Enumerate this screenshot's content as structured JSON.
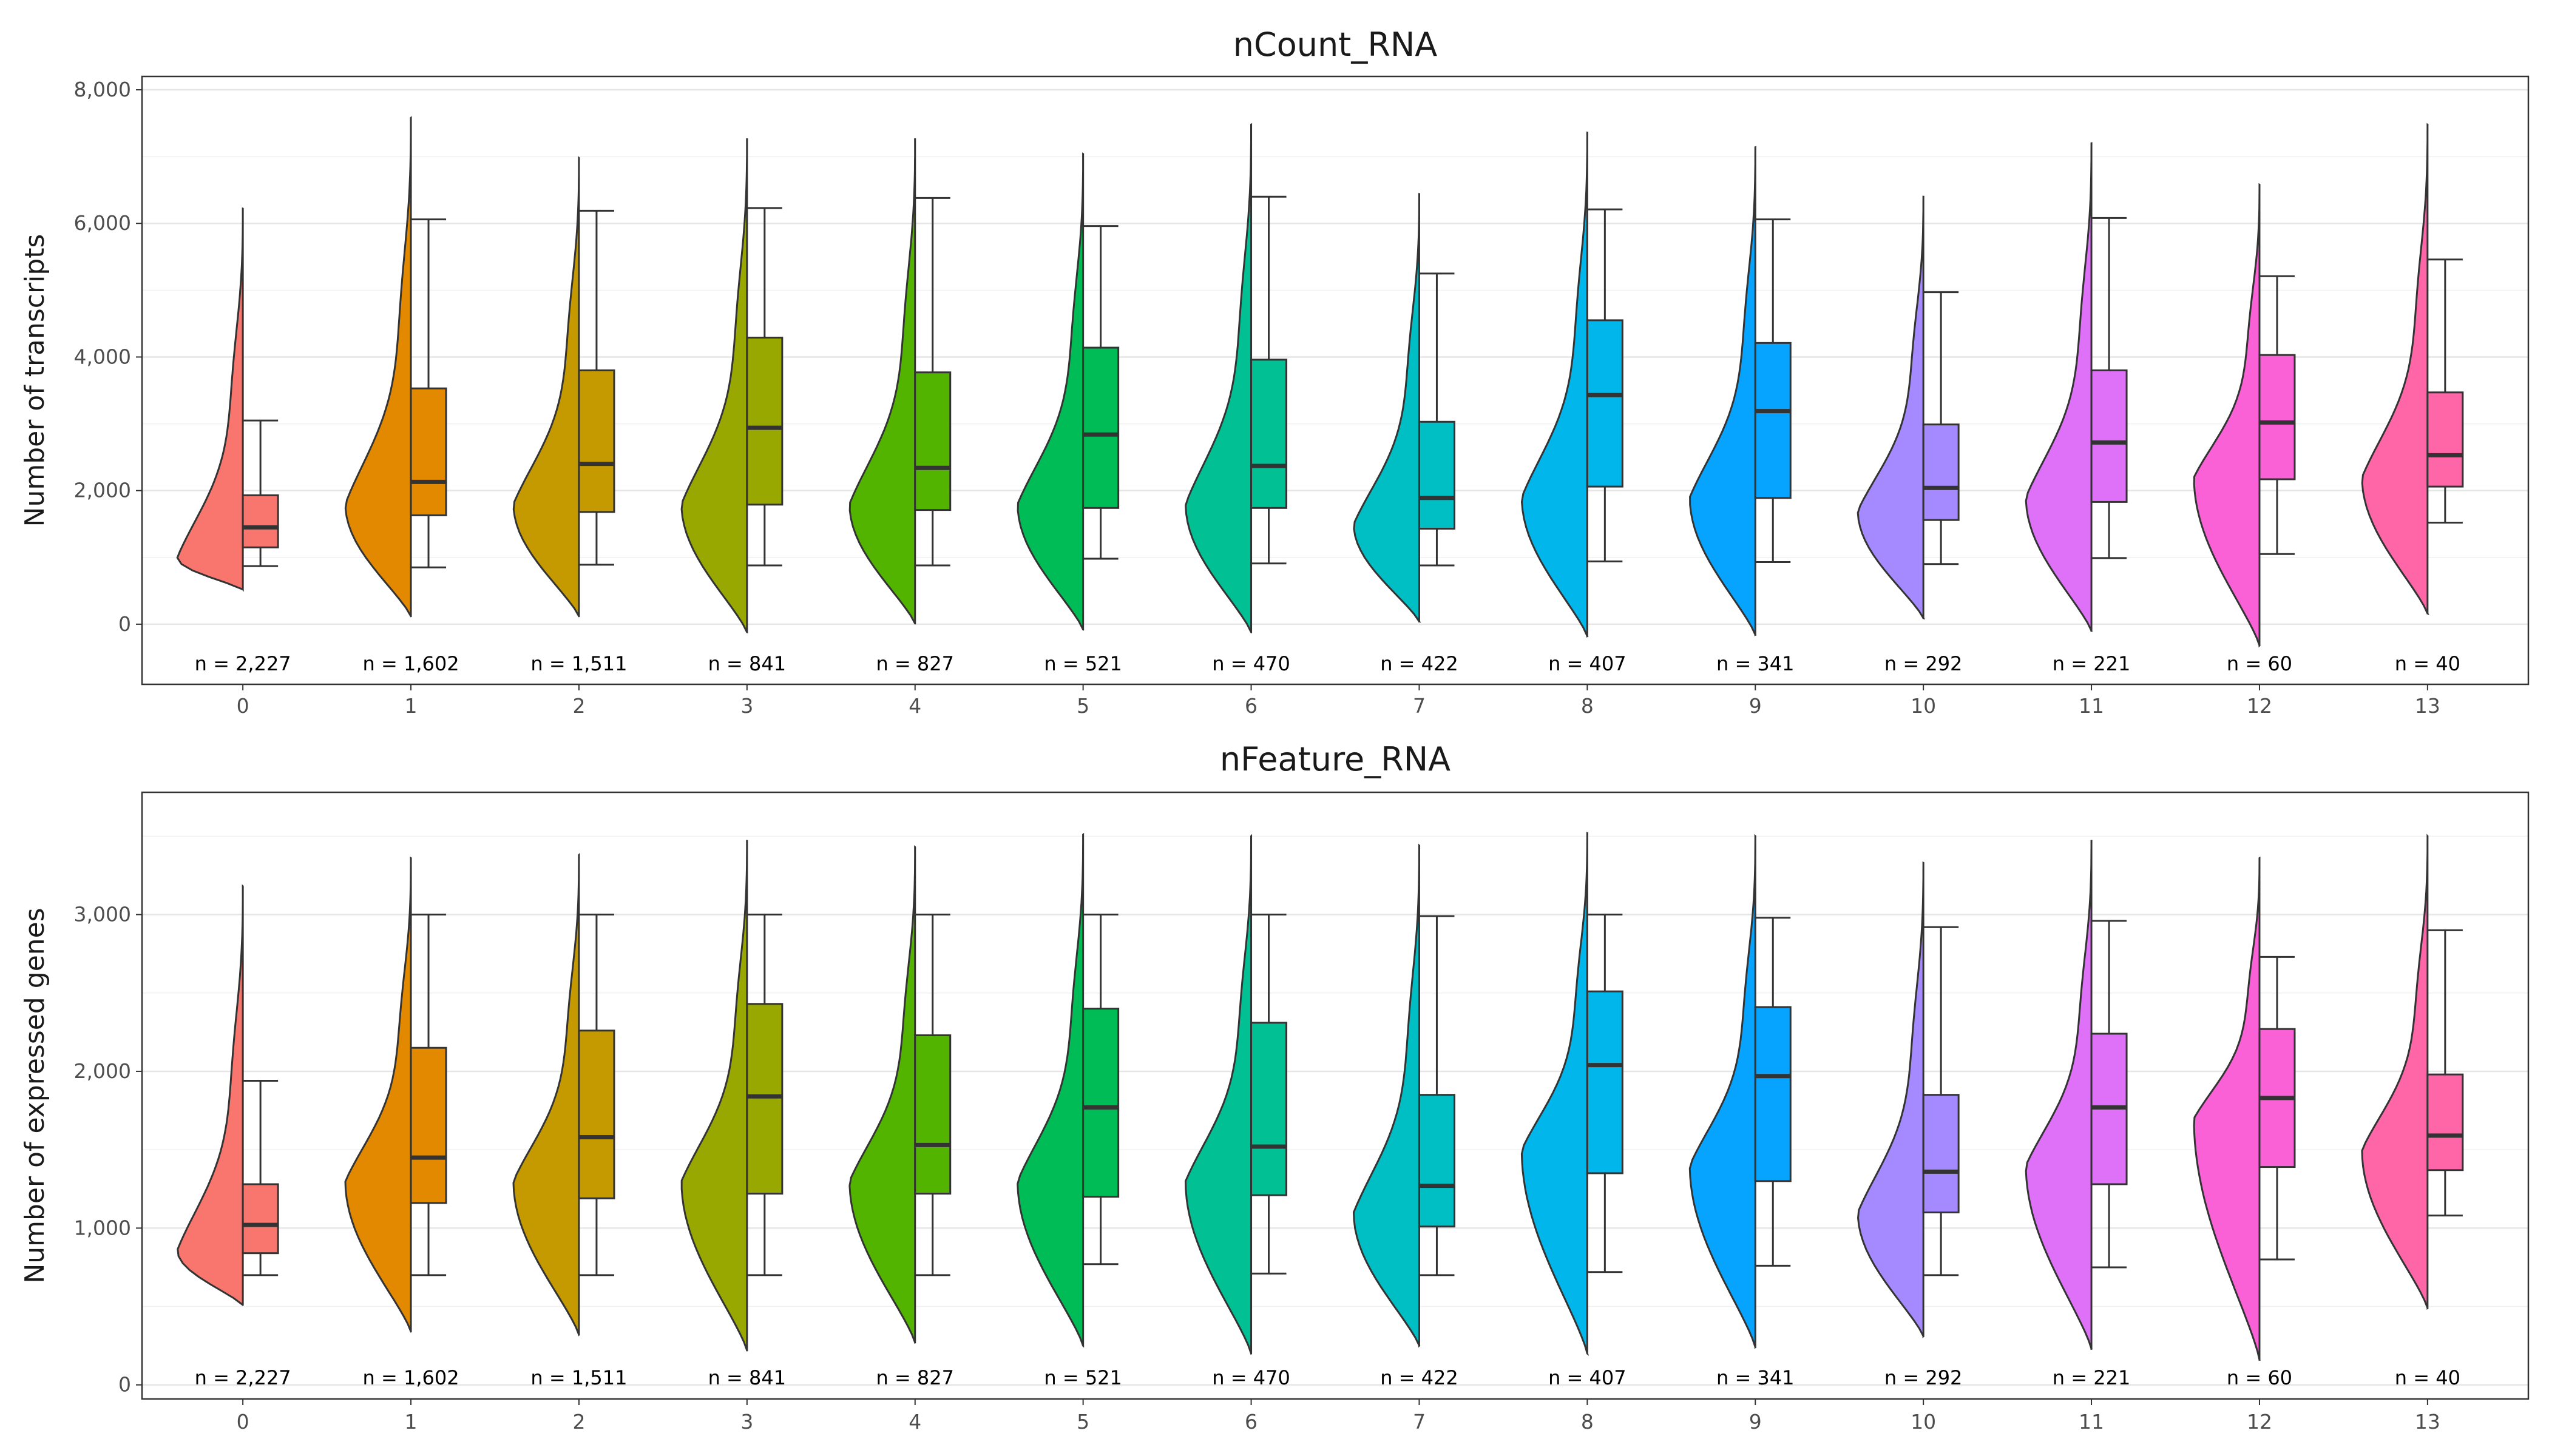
{
  "chart_data": [
    {
      "type": "violin+box",
      "title": "nCount_RNA",
      "xlabel": "",
      "ylabel": "Number of transcripts",
      "ylim": [
        -900,
        8200
      ],
      "yticks": [
        0,
        2000,
        4000,
        6000,
        8000
      ],
      "ytick_labels": [
        "0",
        "2,000",
        "4,000",
        "6,000",
        "8,000"
      ],
      "grid": true,
      "categories": [
        "0",
        "1",
        "2",
        "3",
        "4",
        "5",
        "6",
        "7",
        "8",
        "9",
        "10",
        "11",
        "12",
        "13"
      ],
      "colors": [
        "#F8766D",
        "#E38900",
        "#C49A00",
        "#99A800",
        "#53B400",
        "#00BC56",
        "#00C094",
        "#00BFC4",
        "#00B6EB",
        "#06A4FF",
        "#A58AFF",
        "#DF70F8",
        "#FB61D7",
        "#FF66A8"
      ],
      "n_labels": [
        "n = 2,227",
        "n = 1,602",
        "n = 1,511",
        "n = 841",
        "n = 827",
        "n = 521",
        "n = 470",
        "n = 422",
        "n = 407",
        "n = 341",
        "n = 292",
        "n = 221",
        "n = 60",
        "n = 40"
      ],
      "violin_range": [
        [
          520,
          6220
        ],
        [
          120,
          7580
        ],
        [
          120,
          6980
        ],
        [
          -120,
          7260
        ],
        [
          10,
          7260
        ],
        [
          -80,
          7040
        ],
        [
          -120,
          7480
        ],
        [
          40,
          6440
        ],
        [
          -180,
          7360
        ],
        [
          -160,
          7140
        ],
        [
          90,
          6400
        ],
        [
          -100,
          7200
        ],
        [
          -320,
          6580
        ],
        [
          160,
          7480
        ]
      ],
      "violin_peak": [
        1000,
        1800,
        1800,
        1800,
        1800,
        1800,
        1800,
        1500,
        1900,
        1900,
        1700,
        1900,
        2200,
        2200
      ],
      "box": [
        {
          "whisker_low": 870,
          "q1": 1150,
          "median": 1450,
          "q3": 1930,
          "whisker_high": 3050
        },
        {
          "whisker_low": 850,
          "q1": 1630,
          "median": 2130,
          "q3": 3530,
          "whisker_high": 6060
        },
        {
          "whisker_low": 890,
          "q1": 1680,
          "median": 2400,
          "q3": 3800,
          "whisker_high": 6190
        },
        {
          "whisker_low": 880,
          "q1": 1790,
          "median": 2940,
          "q3": 4290,
          "whisker_high": 6230
        },
        {
          "whisker_low": 880,
          "q1": 1710,
          "median": 2340,
          "q3": 3770,
          "whisker_high": 6380
        },
        {
          "whisker_low": 980,
          "q1": 1740,
          "median": 2840,
          "q3": 4140,
          "whisker_high": 5960
        },
        {
          "whisker_low": 910,
          "q1": 1740,
          "median": 2370,
          "q3": 3960,
          "whisker_high": 6400
        },
        {
          "whisker_low": 880,
          "q1": 1430,
          "median": 1890,
          "q3": 3030,
          "whisker_high": 5250
        },
        {
          "whisker_low": 940,
          "q1": 2060,
          "median": 3430,
          "q3": 4550,
          "whisker_high": 6210
        },
        {
          "whisker_low": 930,
          "q1": 1890,
          "median": 3190,
          "q3": 4210,
          "whisker_high": 6060
        },
        {
          "whisker_low": 900,
          "q1": 1560,
          "median": 2040,
          "q3": 2990,
          "whisker_high": 4970
        },
        {
          "whisker_low": 990,
          "q1": 1830,
          "median": 2720,
          "q3": 3800,
          "whisker_high": 6080
        },
        {
          "whisker_low": 1050,
          "q1": 2170,
          "median": 3020,
          "q3": 4030,
          "whisker_high": 5210
        },
        {
          "whisker_low": 1520,
          "q1": 2060,
          "median": 2530,
          "q3": 3470,
          "whisker_high": 5460
        }
      ]
    },
    {
      "type": "violin+box",
      "title": "nFeature_RNA",
      "xlabel": "",
      "ylabel": "Number of expressed genes",
      "ylim": [
        -90,
        3780
      ],
      "yticks": [
        0,
        1000,
        2000,
        3000
      ],
      "ytick_labels": [
        "0",
        "1,000",
        "2,000",
        "3,000"
      ],
      "grid": true,
      "categories": [
        "0",
        "1",
        "2",
        "3",
        "4",
        "5",
        "6",
        "7",
        "8",
        "9",
        "10",
        "11",
        "12",
        "13"
      ],
      "colors": [
        "#F8766D",
        "#E38900",
        "#C49A00",
        "#99A800",
        "#53B400",
        "#00BC56",
        "#00C094",
        "#00BFC4",
        "#00B6EB",
        "#06A4FF",
        "#A58AFF",
        "#DF70F8",
        "#FB61D7",
        "#FF66A8"
      ],
      "n_labels": [
        "n = 2,227",
        "n = 1,602",
        "n = 1,511",
        "n = 841",
        "n = 827",
        "n = 521",
        "n = 470",
        "n = 422",
        "n = 407",
        "n = 341",
        "n = 292",
        "n = 221",
        "n = 60",
        "n = 40"
      ],
      "violin_range": [
        [
          510,
          3180
        ],
        [
          340,
          3360
        ],
        [
          320,
          3380
        ],
        [
          220,
          3470
        ],
        [
          270,
          3430
        ],
        [
          250,
          3510
        ],
        [
          200,
          3500
        ],
        [
          250,
          3440
        ],
        [
          200,
          3520
        ],
        [
          240,
          3500
        ],
        [
          310,
          3330
        ],
        [
          230,
          3470
        ],
        [
          160,
          3360
        ],
        [
          490,
          3500
        ]
      ],
      "violin_peak": [
        860,
        1300,
        1300,
        1300,
        1300,
        1300,
        1300,
        1100,
        1500,
        1400,
        1100,
        1400,
        1700,
        1500
      ],
      "box": [
        {
          "whisker_low": 700,
          "q1": 840,
          "median": 1020,
          "q3": 1280,
          "whisker_high": 1940
        },
        {
          "whisker_low": 700,
          "q1": 1160,
          "median": 1450,
          "q3": 2150,
          "whisker_high": 3000
        },
        {
          "whisker_low": 700,
          "q1": 1190,
          "median": 1580,
          "q3": 2260,
          "whisker_high": 3000
        },
        {
          "whisker_low": 700,
          "q1": 1220,
          "median": 1840,
          "q3": 2430,
          "whisker_high": 3000
        },
        {
          "whisker_low": 700,
          "q1": 1220,
          "median": 1530,
          "q3": 2230,
          "whisker_high": 3000
        },
        {
          "whisker_low": 770,
          "q1": 1200,
          "median": 1770,
          "q3": 2400,
          "whisker_high": 3000
        },
        {
          "whisker_low": 710,
          "q1": 1210,
          "median": 1520,
          "q3": 2310,
          "whisker_high": 3000
        },
        {
          "whisker_low": 700,
          "q1": 1010,
          "median": 1270,
          "q3": 1850,
          "whisker_high": 2990
        },
        {
          "whisker_low": 720,
          "q1": 1350,
          "median": 2040,
          "q3": 2510,
          "whisker_high": 3000
        },
        {
          "whisker_low": 760,
          "q1": 1300,
          "median": 1970,
          "q3": 2410,
          "whisker_high": 2980
        },
        {
          "whisker_low": 700,
          "q1": 1100,
          "median": 1360,
          "q3": 1850,
          "whisker_high": 2920
        },
        {
          "whisker_low": 750,
          "q1": 1280,
          "median": 1770,
          "q3": 2240,
          "whisker_high": 2960
        },
        {
          "whisker_low": 800,
          "q1": 1390,
          "median": 1830,
          "q3": 2270,
          "whisker_high": 2730
        },
        {
          "whisker_low": 1080,
          "q1": 1370,
          "median": 1590,
          "q3": 1980,
          "whisker_high": 2900
        }
      ]
    }
  ]
}
